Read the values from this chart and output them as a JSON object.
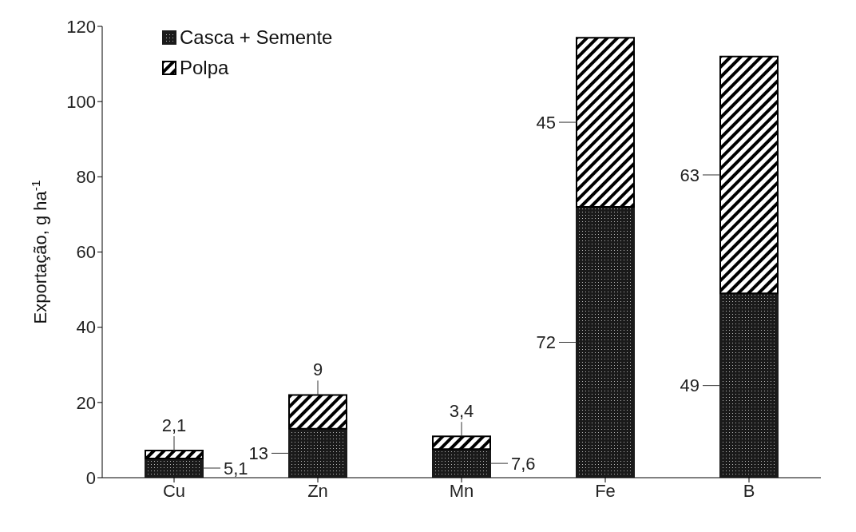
{
  "chart_data": {
    "type": "bar",
    "stacked": true,
    "ylabel": "Exportação, g ha$^{-1}$",
    "categories": [
      "Cu",
      "Zn",
      "Mn",
      "Fe",
      "B"
    ],
    "series": [
      {
        "name": "Casca + Semente",
        "color": "#1a1a1a",
        "values": [
          5.1,
          13,
          7.6,
          72,
          49
        ],
        "value_labels": [
          "5,1",
          "13",
          "7,6",
          "72",
          "49"
        ]
      },
      {
        "name": "Polpa",
        "color": "#000000",
        "values": [
          2.1,
          9,
          3.4,
          45,
          63
        ],
        "value_labels": [
          "2,1",
          "9",
          "3,4",
          "45",
          "63"
        ]
      }
    ],
    "ylim": [
      0,
      120
    ],
    "yticks": [
      0,
      20,
      40,
      60,
      80,
      100,
      120
    ],
    "grid": false,
    "legend": "top left"
  }
}
